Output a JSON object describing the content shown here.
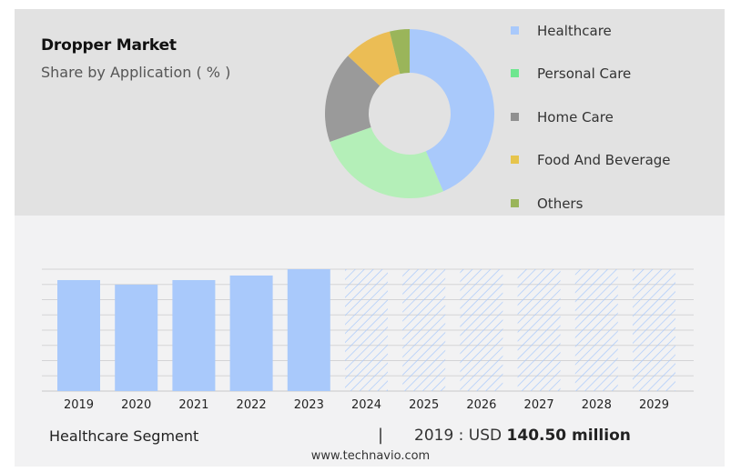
{
  "header": {
    "title": "Dropper Market",
    "subtitle": "Share by Application ( % )"
  },
  "chart_data": [
    {
      "type": "pie",
      "variant": "donut",
      "title": "Share by Application ( % )",
      "categories": [
        "Healthcare",
        "Personal Care",
        "Home Care",
        "Food And Beverage",
        "Others"
      ],
      "values": [
        43.5,
        26.1,
        17.4,
        9.2,
        3.8
      ],
      "colors": [
        "#a9c9fb",
        "#b4efb8",
        "#9a9a9a",
        "#ebbd55",
        "#9ab55a"
      ],
      "legend_colors": [
        "#a9c9fb",
        "#6ee68f",
        "#909090",
        "#e6c44c",
        "#9ab55a"
      ],
      "legend_position": "right"
    },
    {
      "type": "bar",
      "title": "Healthcare Segment",
      "categories": [
        "2019",
        "2020",
        "2021",
        "2022",
        "2023",
        "2024",
        "2025",
        "2026",
        "2027",
        "2028",
        "2029"
      ],
      "values": [
        140.5,
        134.7,
        140.5,
        146.3,
        154.3,
        null,
        null,
        null,
        null,
        null,
        null
      ],
      "forecast": [
        false,
        false,
        false,
        false,
        false,
        true,
        true,
        true,
        true,
        true,
        true
      ],
      "ylim": [
        0,
        154.3
      ],
      "grid": true,
      "xlabel": "",
      "ylabel": "USD million",
      "bar_color": "#a9c9fb",
      "hatch_color": "#a9c9fb"
    }
  ],
  "footer": {
    "segment_label": "Healthcare Segment",
    "separator": "|",
    "value_prefix": "2019 : USD",
    "value_bold": "140.50 million",
    "source": "www.technavio.com"
  }
}
